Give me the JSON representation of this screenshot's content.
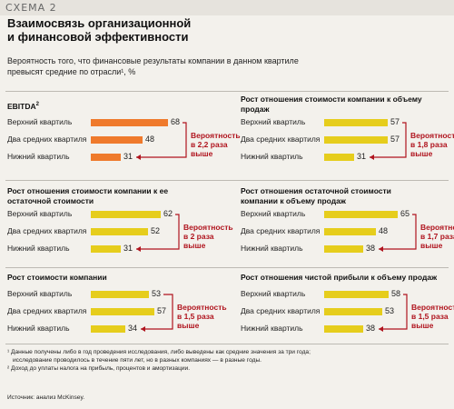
{
  "header": {
    "scheme_label": "СХЕМА 2",
    "title_line1": "Взаимосвязь организационной",
    "title_line2": "и финансовой эффективности",
    "subtitle_line1": "Вероятность того, что финансовые результаты компании в данном квартиле",
    "subtitle_line2": "превысят средние по отрасли¹, %"
  },
  "colors": {
    "orange": "#ef7a2c",
    "yellow": "#e6cd1c",
    "red_note": "#b0141e"
  },
  "chart_data": [
    {
      "type": "bar",
      "title": "EBITDA",
      "title_sup": "2",
      "categories": [
        "Верхний квартиль",
        "Два средних квартиля",
        "Нижний квартиль"
      ],
      "values": [
        68,
        48,
        31
      ],
      "color": "#ef7a2c",
      "note_lines": [
        "Вероятность",
        "в 2,2 раза",
        "выше"
      ]
    },
    {
      "type": "bar",
      "title": "Рост отношения стоимости компании к объему продаж",
      "categories": [
        "Верхний квартиль",
        "Два средних квартиля",
        "Нижний квартиль"
      ],
      "values": [
        57,
        57,
        31
      ],
      "color": "#e6cd1c",
      "note_lines": [
        "Вероятность",
        "в 1,8 раза",
        "выше"
      ]
    },
    {
      "type": "bar",
      "title": "Рост отношения стоимости компании к ее остаточной стоимости",
      "categories": [
        "Верхний квартиль",
        "Два средних квартиля",
        "Нижний квартиль"
      ],
      "values": [
        62,
        52,
        31
      ],
      "color": "#e6cd1c",
      "note_lines": [
        "Вероятность",
        "в 2 раза",
        "выше"
      ]
    },
    {
      "type": "bar",
      "title": "Рост отношения остаточной стоимости компании к объему продаж",
      "categories": [
        "Верхний квартиль",
        "Два средних квартиля",
        "Нижний квартиль"
      ],
      "values": [
        65,
        48,
        38
      ],
      "color": "#e6cd1c",
      "note_lines": [
        "Вероятность",
        "в 1,7 раза",
        "выше"
      ]
    },
    {
      "type": "bar",
      "title": "Рост стоимости компании",
      "categories": [
        "Верхний квартиль",
        "Два средних квартиля",
        "Нижний квартиль"
      ],
      "values": [
        53,
        57,
        34
      ],
      "color": "#e6cd1c",
      "note_lines": [
        "Вероятность",
        "в 1,5 раза",
        "выше"
      ]
    },
    {
      "type": "bar",
      "title": "Рост отношения чистой прибыли к объему продаж",
      "categories": [
        "Верхний квартиль",
        "Два средних квартиля",
        "Нижний квартиль"
      ],
      "values": [
        58,
        53,
        38
      ],
      "color": "#e6cd1c",
      "note_lines": [
        "Вероятность",
        "в 1,5 раза",
        "выше"
      ]
    }
  ],
  "footnotes": {
    "line1": "¹ Данные получены либо в год проведения исследования, либо выведены как средние значения за три года;",
    "line2": "исследование проводилось в течение пяти лет, но в разных компаниях — в разные годы.",
    "line3": "² Доход до уплаты налога на прибыль, процентов и амортизации."
  },
  "source": "Источник: анализ McKinsey."
}
